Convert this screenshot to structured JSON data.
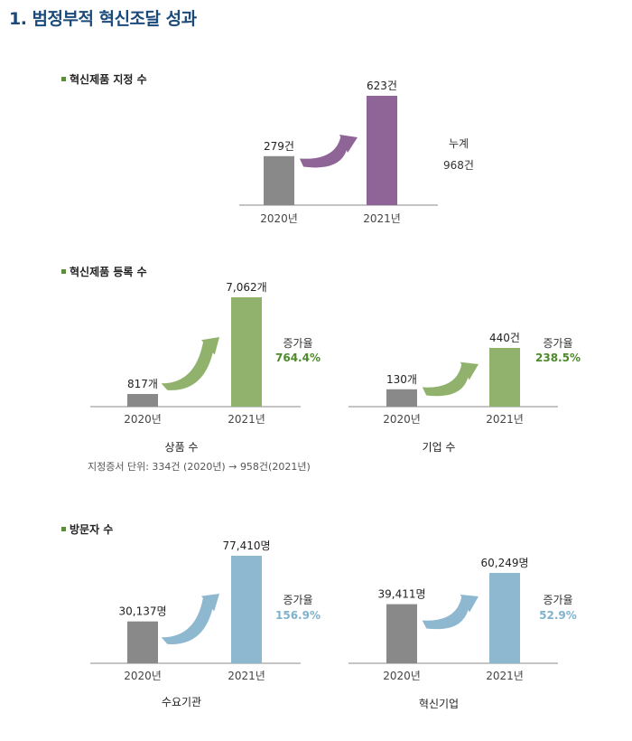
{
  "page_title": "1. 범정부적 혁신조달 성과",
  "sections": [
    {
      "heading": "혁신제품 지정 수"
    },
    {
      "heading": "혁신제품 등록 수"
    },
    {
      "heading": "방문자 수"
    }
  ],
  "note": "지정증서 단위:  334건 (2020년) → 958건(2021년)",
  "colors": {
    "grey": "#898989",
    "purple": "#8f6497",
    "green": "#91b26c",
    "blue": "#8db8cf",
    "green_text": "#4d8a2c",
    "blue_text": "#7fb2cc"
  },
  "chart_data": [
    {
      "type": "bar",
      "categories": [
        "2020년",
        "2021년"
      ],
      "values": [
        279,
        623
      ],
      "labels": [
        "279건",
        "623건"
      ],
      "side_label": "누계",
      "side_value": "968건",
      "color": "purple"
    },
    {
      "type": "bar",
      "categories": [
        "2020년",
        "2021년"
      ],
      "values": [
        817,
        7062
      ],
      "labels": [
        "817개",
        "7,062개"
      ],
      "increase_label": "증가율",
      "increase_value": "764.4%",
      "caption": "상품 수",
      "color": "green"
    },
    {
      "type": "bar",
      "categories": [
        "2020년",
        "2021년"
      ],
      "values": [
        130,
        440
      ],
      "labels": [
        "130개",
        "440건"
      ],
      "increase_label": "증가율",
      "increase_value": "238.5%",
      "caption": "기업 수",
      "color": "green"
    },
    {
      "type": "bar",
      "categories": [
        "2020년",
        "2021년"
      ],
      "values": [
        30137,
        77410
      ],
      "labels": [
        "30,137명",
        "77,410명"
      ],
      "increase_label": "증가율",
      "increase_value": "156.9%",
      "caption": "수요기관",
      "color": "blue"
    },
    {
      "type": "bar",
      "categories": [
        "2020년",
        "2021년"
      ],
      "values": [
        39411,
        60249
      ],
      "labels": [
        "39,411명",
        "60,249명"
      ],
      "increase_label": "증가율",
      "increase_value": "52.9%",
      "caption": "혁신기업",
      "color": "blue"
    }
  ]
}
